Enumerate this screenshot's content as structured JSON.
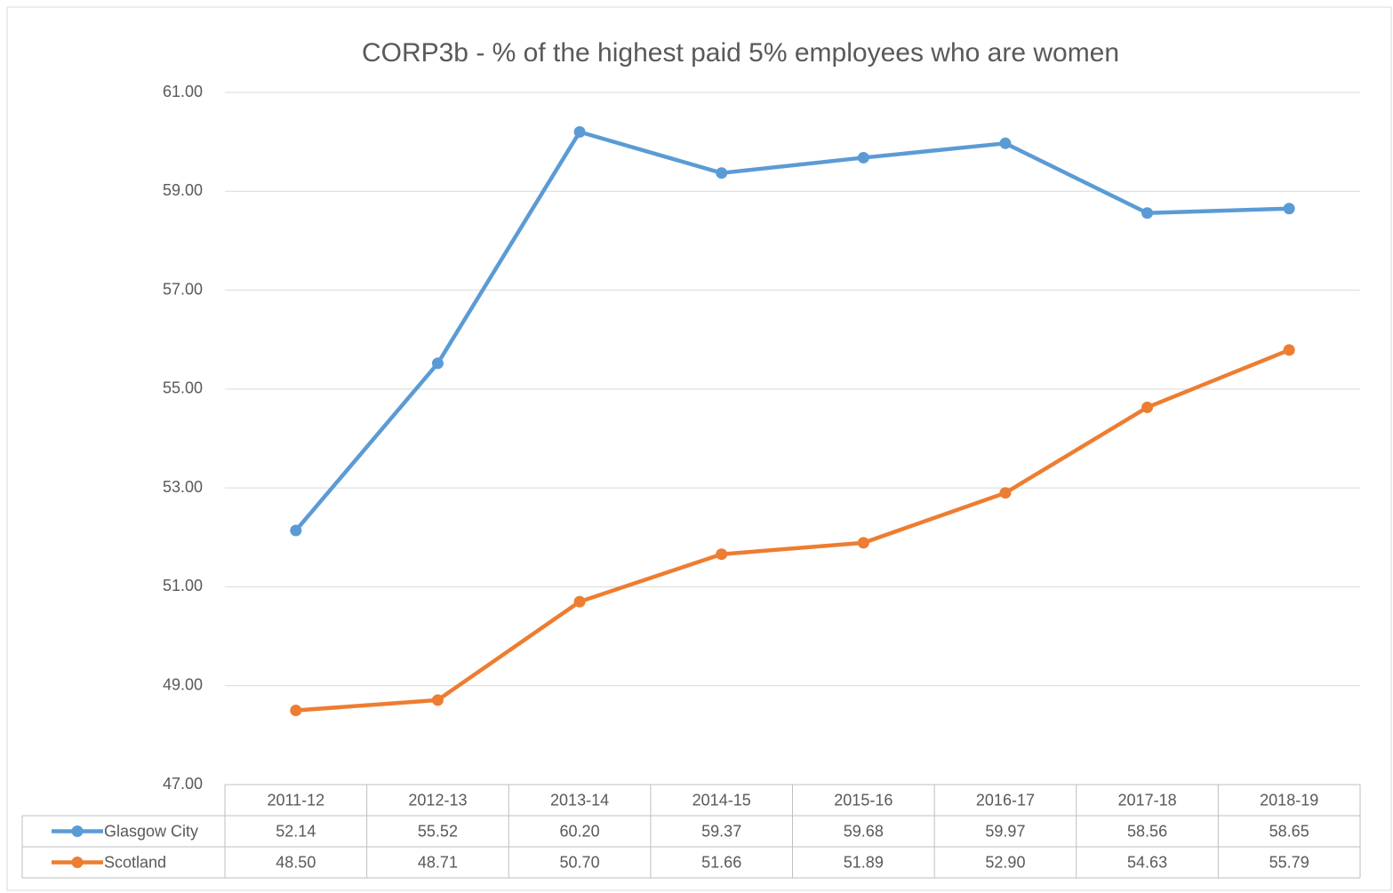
{
  "chart_data": {
    "type": "line",
    "title": "CORP3b - % of the highest paid 5% employees who are women",
    "categories": [
      "2011-12",
      "2012-13",
      "2013-14",
      "2014-15",
      "2015-16",
      "2016-17",
      "2017-18",
      "2018-19"
    ],
    "series": [
      {
        "name": "Glasgow City",
        "color": "#5b9bd5",
        "values": [
          52.14,
          55.52,
          60.2,
          59.37,
          59.68,
          59.97,
          58.56,
          58.65
        ],
        "value_labels": [
          "52.14",
          "55.52",
          "60.20",
          "59.37",
          "59.68",
          "59.97",
          "58.56",
          "58.65"
        ]
      },
      {
        "name": "Scotland",
        "color": "#ed7d31",
        "values": [
          48.5,
          48.71,
          50.7,
          51.66,
          51.89,
          52.9,
          54.63,
          55.79
        ],
        "value_labels": [
          "48.50",
          "48.71",
          "50.70",
          "51.66",
          "51.89",
          "52.90",
          "54.63",
          "55.79"
        ]
      }
    ],
    "ylim": [
      47,
      61
    ],
    "yticks": [
      {
        "value": 47,
        "label": "47.00"
      },
      {
        "value": 49,
        "label": "49.00"
      },
      {
        "value": 51,
        "label": "51.00"
      },
      {
        "value": 53,
        "label": "53.00"
      },
      {
        "value": 55,
        "label": "55.00"
      },
      {
        "value": 57,
        "label": "57.00"
      },
      {
        "value": 59,
        "label": "59.00"
      },
      {
        "value": 61,
        "label": "61.00"
      }
    ],
    "grid": true
  }
}
